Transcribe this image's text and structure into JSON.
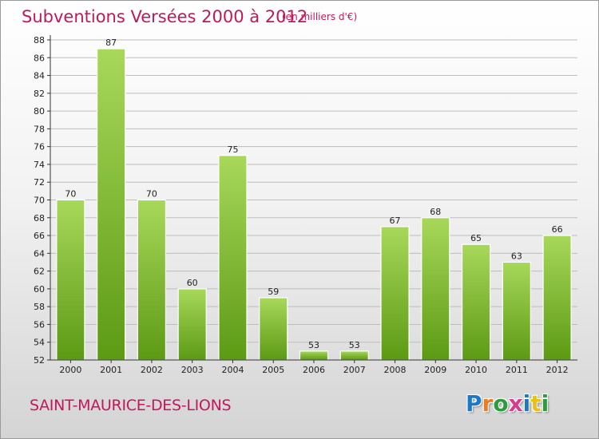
{
  "header": {
    "title": "Subventions Versées 2000 à 2012",
    "subtitle": "(en milliers d'€)"
  },
  "footer": {
    "commune": "SAINT-MAURICE-DES-LIONS",
    "logo": {
      "letters": [
        "P",
        "r",
        "o",
        "x",
        "i",
        "t",
        "i"
      ],
      "colors": [
        "#1f77c8",
        "#e67e22",
        "#2e9c3a",
        "#d83a8c",
        "#1f77c8",
        "#e8c21a",
        "#2e9c3a"
      ]
    }
  },
  "colors": {
    "bar_top": "#a8d85a",
    "bar_bottom": "#5c9a14",
    "title": "#c2185b",
    "axis": "#333333",
    "grid": "#bdbdbd"
  },
  "chart_data": {
    "type": "bar",
    "title": "Subventions Versées 2000 à 2012",
    "subtitle": "(en milliers d'€)",
    "categories": [
      "2000",
      "2001",
      "2002",
      "2003",
      "2004",
      "2005",
      "2006",
      "2007",
      "2008",
      "2009",
      "2010",
      "2011",
      "2012"
    ],
    "values": [
      70,
      87,
      70,
      60,
      75,
      59,
      53,
      53,
      67,
      68,
      65,
      63,
      66
    ],
    "xlabel": "",
    "ylabel": "",
    "ylim": [
      52,
      88
    ],
    "yticks": [
      52,
      54,
      56,
      58,
      60,
      62,
      64,
      66,
      68,
      70,
      72,
      74,
      76,
      78,
      80,
      82,
      84,
      86,
      88
    ],
    "grid": true,
    "grid_axis": "y",
    "legend": "none",
    "data_labels": true
  }
}
